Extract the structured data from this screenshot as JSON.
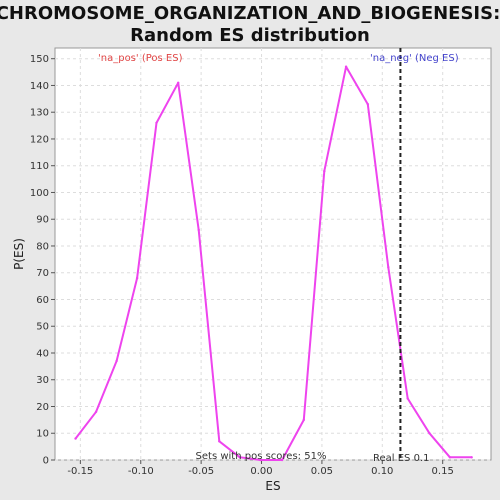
{
  "chart_data": {
    "type": "line",
    "title_line1": "CHROMOSOME_ORGANIZATION_AND_BIOGENESIS:",
    "title_line2": "Random ES distribution",
    "xlabel": "ES",
    "ylabel": "P(ES)",
    "xlim": [
      -0.171,
      0.19
    ],
    "ylim": [
      0,
      154
    ],
    "xticks": [
      -0.15,
      -0.1,
      -0.05,
      0.0,
      0.05,
      0.1,
      0.15
    ],
    "xtick_labels": [
      "-0.15",
      "-0.10",
      "-0.05",
      "0.00",
      "0.05",
      "0.10",
      "0.15"
    ],
    "yticks": [
      0,
      10,
      20,
      30,
      40,
      50,
      60,
      70,
      80,
      90,
      100,
      110,
      120,
      130,
      140,
      150
    ],
    "ytick_labels": [
      "0",
      "10",
      "20",
      "30",
      "40",
      "50",
      "60",
      "70",
      "80",
      "90",
      "100",
      "110",
      "120",
      "130",
      "140",
      "150"
    ],
    "grid": true,
    "series": [
      {
        "color": "#ee44ee",
        "x": [
          -0.154,
          -0.137,
          -0.12,
          -0.103,
          -0.087,
          -0.069,
          -0.052,
          -0.035,
          -0.018,
          -0.001,
          0.017,
          0.035,
          0.052,
          0.07,
          0.088,
          0.105,
          0.121,
          0.139,
          0.156,
          0.174
        ],
        "y": [
          8,
          18,
          37,
          68,
          126,
          141,
          86,
          7,
          1,
          0,
          0,
          15,
          108,
          147,
          133,
          72,
          23,
          10,
          1,
          1
        ]
      }
    ],
    "real_es": {
      "x": 0.115,
      "color": "#222222"
    },
    "annotations": {
      "pos_label": "'na_pos' (Pos ES)",
      "neg_label": "'na_neg' (Neg ES)",
      "pos_color": "#e04444",
      "neg_color": "#4444cc",
      "sets_text": "Sets with pos scores: 51%",
      "real_es_text": "Real ES 0.1"
    },
    "colors": {
      "background": "#e8e8e8",
      "plot_bg": "#ffffff",
      "grid": "#dddddd"
    }
  }
}
